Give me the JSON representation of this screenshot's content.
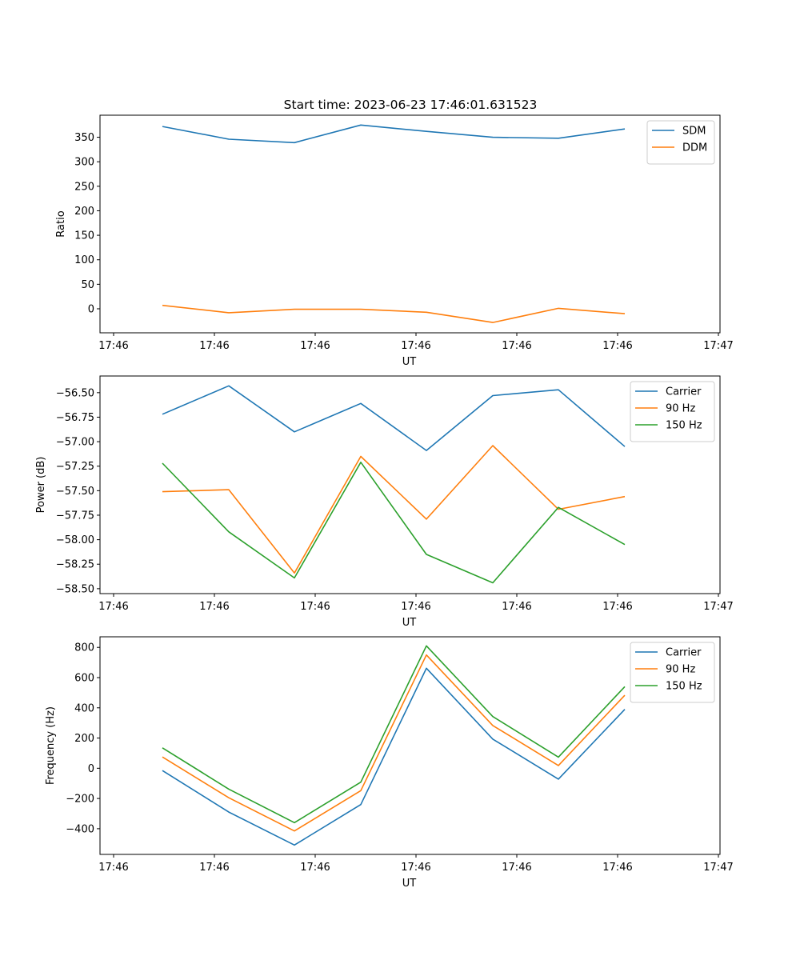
{
  "figure": {
    "title": "Start time: 2023-06-23 17:46:01.631523"
  },
  "colors": {
    "blue": "#1f77b4",
    "orange": "#ff7f0e",
    "green": "#2ca02c"
  },
  "chart_data": [
    {
      "type": "line",
      "title": "Start time: 2023-06-23 17:46:01.631523",
      "xlabel": "UT",
      "ylabel": "Ratio",
      "x_tick_labels": [
        "17:46",
        "17:46",
        "17:46",
        "17:46",
        "17:46",
        "17:46",
        "17:47"
      ],
      "y_ticks": [
        0,
        50,
        100,
        150,
        200,
        250,
        300,
        350
      ],
      "y_tick_labels": [
        "0",
        "50",
        "100",
        "150",
        "200",
        "250",
        "300",
        "350"
      ],
      "ylim": [
        -49,
        395
      ],
      "legend_position": "top-right",
      "series": [
        {
          "name": "SDM",
          "color": "#1f77b4",
          "values": [
            372,
            346,
            339,
            375,
            362,
            350,
            348,
            367
          ]
        },
        {
          "name": "DDM",
          "color": "#ff7f0e",
          "values": [
            7,
            -8,
            -1,
            -1,
            -7,
            -28,
            1,
            -10
          ]
        }
      ]
    },
    {
      "type": "line",
      "title": "",
      "xlabel": "UT",
      "ylabel": "Power (dB)",
      "x_tick_labels": [
        "17:46",
        "17:46",
        "17:46",
        "17:46",
        "17:46",
        "17:46",
        "17:47"
      ],
      "y_ticks": [
        -58.5,
        -58.25,
        -58.0,
        -57.75,
        -57.5,
        -57.25,
        -57.0,
        -56.75,
        -56.5
      ],
      "y_tick_labels": [
        "−58.50",
        "−58.25",
        "−58.00",
        "−57.75",
        "−57.50",
        "−57.25",
        "−57.00",
        "−56.75",
        "−56.50"
      ],
      "ylim": [
        -58.55,
        -56.33
      ],
      "legend_position": "top-right",
      "series": [
        {
          "name": "Carrier",
          "color": "#1f77b4",
          "values": [
            -56.72,
            -56.43,
            -56.9,
            -56.61,
            -57.09,
            -56.53,
            -56.47,
            -57.05
          ]
        },
        {
          "name": "90 Hz",
          "color": "#ff7f0e",
          "values": [
            -57.51,
            -57.49,
            -58.34,
            -57.15,
            -57.79,
            -57.04,
            -57.69,
            -57.56
          ]
        },
        {
          "name": "150 Hz",
          "color": "#2ca02c",
          "values": [
            -57.22,
            -57.92,
            -58.39,
            -57.21,
            -58.15,
            -58.44,
            -57.67,
            -58.05
          ]
        }
      ]
    },
    {
      "type": "line",
      "title": "",
      "xlabel": "UT",
      "ylabel": "Frequency (Hz)",
      "x_tick_labels": [
        "17:46",
        "17:46",
        "17:46",
        "17:46",
        "17:46",
        "17:46",
        "17:47"
      ],
      "y_ticks": [
        -400,
        -200,
        0,
        200,
        400,
        600,
        800
      ],
      "y_tick_labels": [
        "−400",
        "−200",
        "0",
        "200",
        "400",
        "600",
        "800"
      ],
      "ylim": [
        -570,
        870
      ],
      "legend_position": "top-right",
      "series": [
        {
          "name": "Carrier",
          "color": "#1f77b4",
          "values": [
            -15,
            -290,
            -508,
            -240,
            662,
            193,
            -72,
            390
          ]
        },
        {
          "name": "90 Hz",
          "color": "#ff7f0e",
          "values": [
            75,
            -195,
            -415,
            -148,
            750,
            283,
            18,
            483
          ]
        },
        {
          "name": "150 Hz",
          "color": "#2ca02c",
          "values": [
            135,
            -138,
            -360,
            -92,
            810,
            342,
            74,
            540
          ]
        }
      ]
    }
  ]
}
